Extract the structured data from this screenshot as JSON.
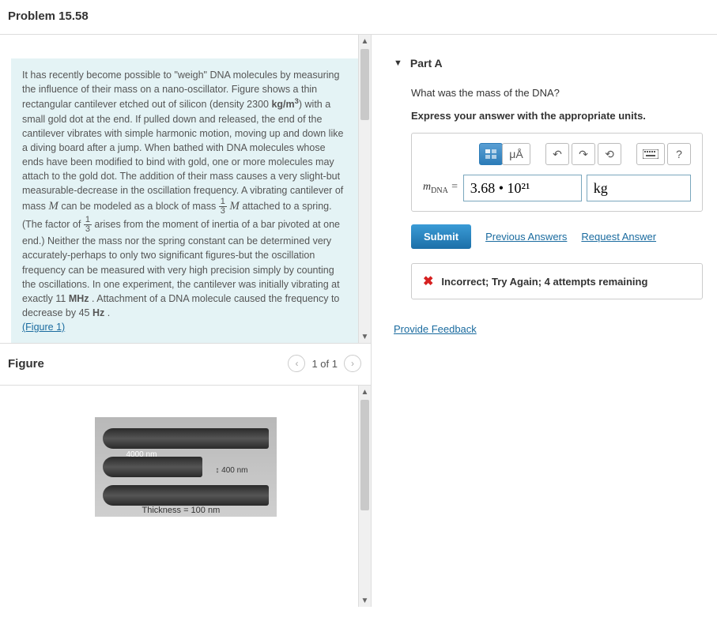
{
  "header": {
    "title": "Problem 15.58"
  },
  "problem": {
    "text_html": "It has recently become possible to \"weigh\" DNA molecules by measuring the influence of their mass on a nano-oscillator. Figure shows a thin rectangular cantilever etched out of silicon (density 2300 <span class='unit'>kg/m<sup>3</sup></span>) with a small gold dot at the end. If pulled down and released, the end of the cantilever vibrates with simple harmonic motion, moving up and down like a diving board after a jump. When bathed with DNA molecules whose ends have been modified to bind with gold, one or more molecules may attach to the gold dot. The addition of their mass causes a very slight-but measurable-decrease in the oscillation frequency. A vibrating cantilever of mass <span class='math-i'>M</span> can be modeled as a block of mass <span class='frac'><span class='num'>1</span><span class='den'>3</span></span> <span class='math-i'>M</span> attached to a spring. (The factor of <span class='frac'><span class='num'>1</span><span class='den'>3</span></span> arises from the moment of inertia of a bar pivoted at one end.) Neither the mass nor the spring constant can be determined very accurately-perhaps to only two significant figures-but the oscillation frequency can be measured with very high precision simply by counting the oscillations. In one experiment, the cantilever was initially vibrating at exactly 11 <span class='unit'>MHz</span> . Attachment of a DNA molecule caused the frequency to decrease by 45 <span class='unit'>Hz</span> .",
    "figure_link": "(Figure 1)"
  },
  "figure": {
    "title": "Figure",
    "pager": "1 of 1",
    "dim_length": "4000 nm",
    "dim_width": "400 nm",
    "dim_thickness": "Thickness = 100 nm"
  },
  "part": {
    "label": "Part A",
    "question": "What was the mass of the DNA?",
    "instruction": "Express your answer with the appropriate units.",
    "toolbar": {
      "units_btn": "μÅ",
      "help": "?"
    },
    "answer": {
      "lhs_symbol": "m",
      "lhs_sub": "DNA",
      "equals": " = ",
      "value": "3.68 • 10²¹",
      "unit": "kg"
    },
    "submit": "Submit",
    "prev_answers": "Previous Answers",
    "request_answer": "Request Answer",
    "feedback": "Incorrect; Try Again; 4 attempts remaining"
  },
  "provide_feedback": "Provide Feedback"
}
